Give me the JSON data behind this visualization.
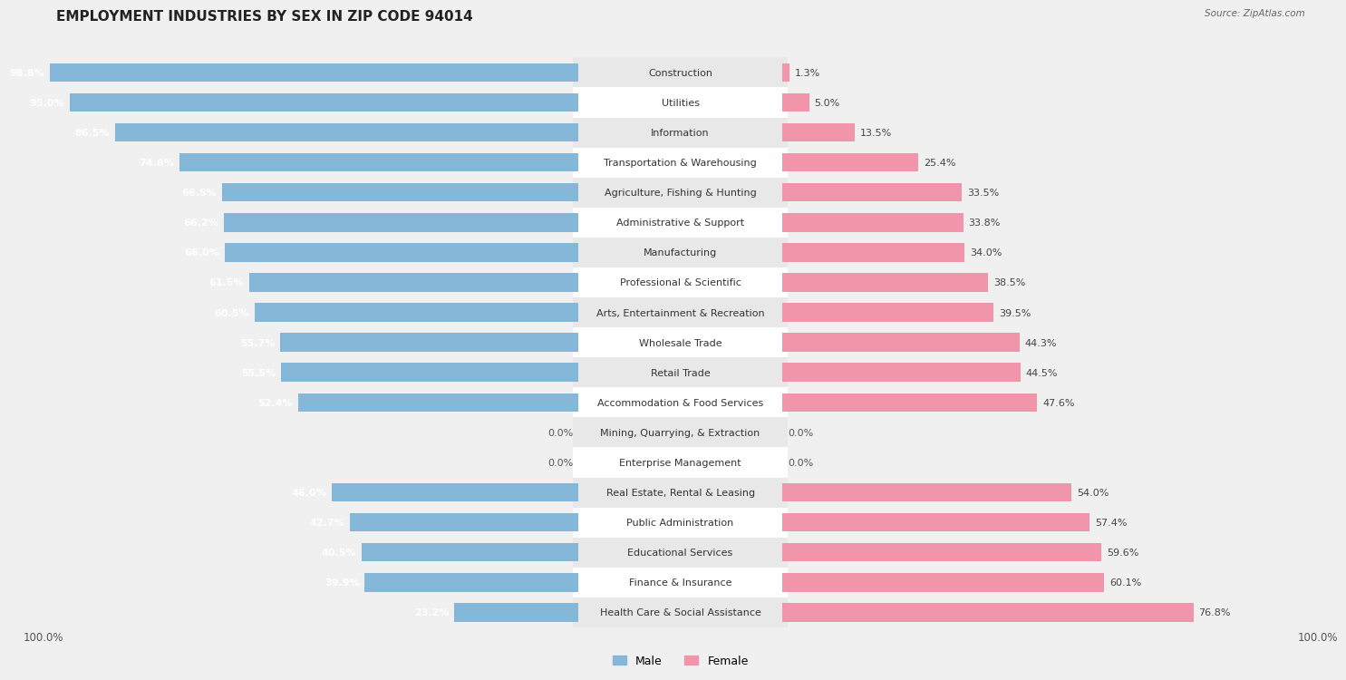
{
  "title": "EMPLOYMENT INDUSTRIES BY SEX IN ZIP CODE 94014",
  "source": "Source: ZipAtlas.com",
  "categories": [
    "Construction",
    "Utilities",
    "Information",
    "Transportation & Warehousing",
    "Agriculture, Fishing & Hunting",
    "Administrative & Support",
    "Manufacturing",
    "Professional & Scientific",
    "Arts, Entertainment & Recreation",
    "Wholesale Trade",
    "Retail Trade",
    "Accommodation & Food Services",
    "Mining, Quarrying, & Extraction",
    "Enterprise Management",
    "Real Estate, Rental & Leasing",
    "Public Administration",
    "Educational Services",
    "Finance & Insurance",
    "Health Care & Social Assistance"
  ],
  "male": [
    98.8,
    95.0,
    86.5,
    74.6,
    66.5,
    66.2,
    66.0,
    61.5,
    60.5,
    55.7,
    55.5,
    52.4,
    0.0,
    0.0,
    46.0,
    42.7,
    40.5,
    39.9,
    23.2
  ],
  "female": [
    1.3,
    5.0,
    13.5,
    25.4,
    33.5,
    33.8,
    34.0,
    38.5,
    39.5,
    44.3,
    44.5,
    47.6,
    0.0,
    0.0,
    54.0,
    57.4,
    59.6,
    60.1,
    76.8
  ],
  "male_color": "#85b8d8",
  "female_color": "#f195aa",
  "bg_color": "#f0f0f0",
  "row_bg_even": "#ffffff",
  "row_bg_odd": "#e8e8e8",
  "bar_height": 0.62,
  "label_fontsize": 8.0,
  "pct_fontsize": 8.0,
  "title_fontsize": 11,
  "xlim": 100.0
}
